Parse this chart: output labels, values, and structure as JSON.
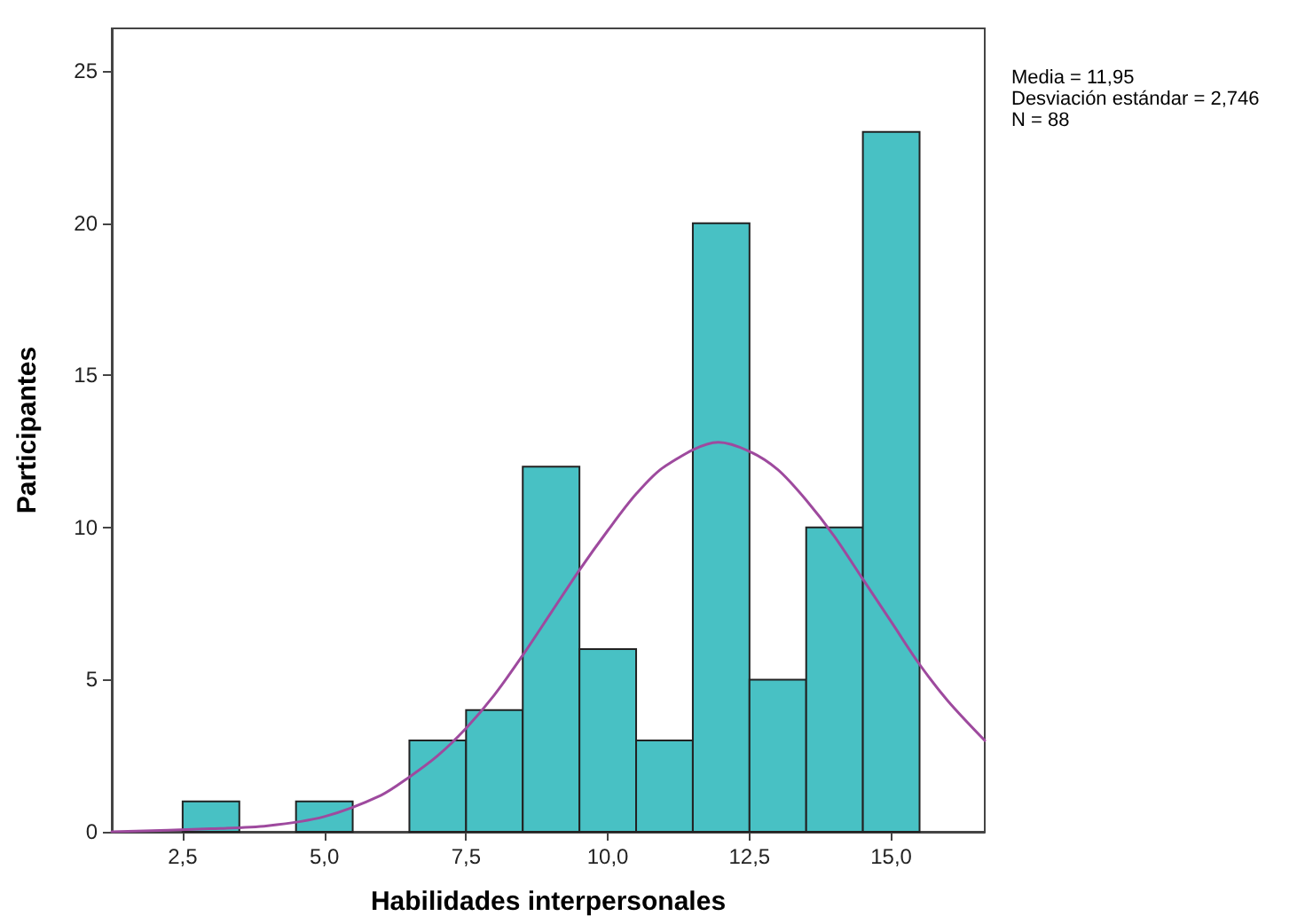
{
  "chart_data": {
    "type": "histogram",
    "xlabel": "Habilidades interpersonales",
    "ylabel": "Participantes",
    "xlim": [
      1.25,
      16.65
    ],
    "xticks": [
      {
        "value": 2.5,
        "label": "2,5"
      },
      {
        "value": 5,
        "label": "5,0"
      },
      {
        "value": 7.5,
        "label": "7,5"
      },
      {
        "value": 10,
        "label": "10,0"
      },
      {
        "value": 12.5,
        "label": "12,5"
      },
      {
        "value": 15,
        "label": "15,0"
      }
    ],
    "ylim": [
      0,
      26.4
    ],
    "yticks": [
      0,
      5,
      10,
      15,
      20,
      25
    ],
    "grid": false,
    "marker": "none",
    "line_style": "solid",
    "series": [
      {
        "color": "#48c1c4",
        "bins": [
          2.5,
          3.5,
          4.5,
          5.5,
          6.5,
          7.5,
          8.5,
          9.5,
          10.5,
          11.5,
          12.5,
          13.5,
          14.5,
          15.5
        ],
        "values": [
          1,
          0,
          1,
          0,
          3,
          4,
          12,
          6,
          3,
          20,
          5,
          10,
          23
        ]
      },
      {
        "type": "line",
        "color": "#9e4a9e",
        "x": [
          1.25,
          3,
          4,
          5,
          6,
          6.5,
          7,
          7.5,
          8,
          8.5,
          9,
          9.5,
          10,
          10.5,
          11,
          11.95,
          12.5,
          13,
          13.5,
          14,
          14.5,
          15,
          15.5,
          16,
          16.65
        ],
        "values": [
          0.0,
          0.1,
          0.2,
          0.5,
          1.2,
          1.8,
          2.5,
          3.4,
          4.5,
          5.8,
          7.2,
          8.6,
          9.9,
          11.1,
          12.0,
          12.8,
          12.5,
          11.9,
          10.9,
          9.7,
          8.3,
          6.9,
          5.5,
          4.3,
          3.0
        ]
      }
    ],
    "annotations": [
      "Media = 11,95",
      "Desviación estándar = 2,746",
      "N = 88"
    ]
  }
}
